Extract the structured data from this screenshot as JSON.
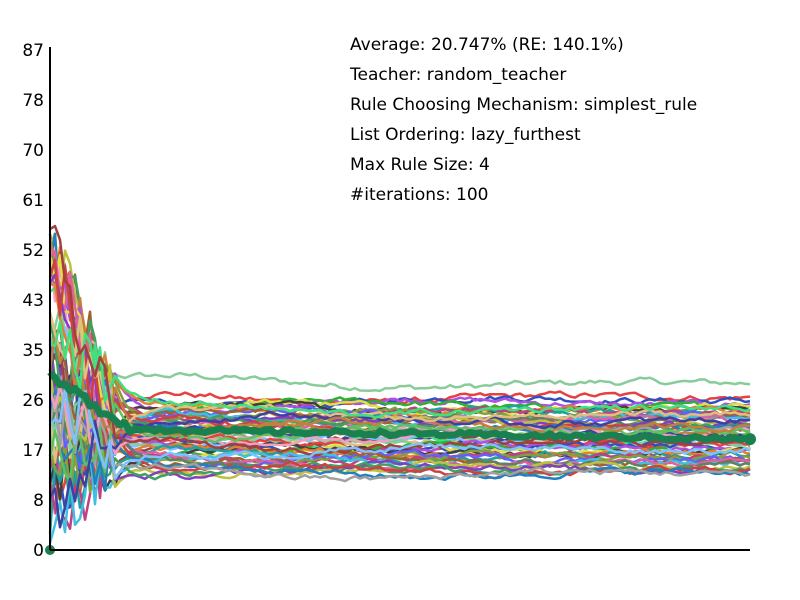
{
  "chart_data": {
    "type": "line",
    "title": "",
    "xlabel": "",
    "ylabel": "",
    "ylim": [
      0,
      87
    ],
    "xlim": [
      0,
      100
    ],
    "y_ticks": [
      "0",
      "8",
      "17",
      "26",
      "35",
      "43",
      "52",
      "61",
      "70",
      "78",
      "87"
    ],
    "y_tick_values": [
      0,
      8.7,
      17.4,
      26.1,
      34.8,
      43.5,
      52.2,
      60.9,
      69.6,
      78.3,
      87
    ],
    "grid": false,
    "legend": "none",
    "info_lines": [
      "Average: 20.747% (RE: 140.1%)",
      "Teacher: random_teacher",
      "Rule Choosing Mechanism: simplest_rule",
      "List Ordering: lazy_furthest",
      "Max Rule Size: 4",
      "#iterations: 100"
    ],
    "series_count": 60,
    "series_final_values": [
      29,
      26.5,
      26,
      25.5,
      25,
      24.8,
      24.5,
      24.2,
      24,
      23.8,
      23.5,
      23.2,
      23,
      22.8,
      22.5,
      22.2,
      22,
      21.8,
      21.5,
      21.2,
      21,
      20.8,
      20.5,
      20.2,
      20,
      19.8,
      19.5,
      19.2,
      19,
      18.8,
      18.5,
      18.2,
      18,
      17.8,
      17.5,
      17.2,
      17,
      16.8,
      16.5,
      16.2,
      16,
      15.8,
      15.5,
      15.2,
      15,
      14.8,
      14.5,
      14.2,
      14,
      13.8,
      13.5,
      13.3,
      19.5,
      20.5,
      21.5,
      22.5,
      23.5,
      24.5,
      18.5,
      17.5
    ],
    "series_colors": [
      "#88cc99",
      "#e64040",
      "#3050c0",
      "#b050e0",
      "#30b030",
      "#e0e040",
      "#404040",
      "#e08030",
      "#20a0a0",
      "#c04080",
      "#80a040",
      "#6060ff",
      "#a06030",
      "#40c0e0",
      "#e060a0",
      "#608060",
      "#c0c040",
      "#8040c0",
      "#40a060",
      "#d04040",
      "#2080c0",
      "#a0a0a0",
      "#f0a0c0",
      "#60c060",
      "#c08040",
      "#4040a0",
      "#e0c080",
      "#40e080",
      "#a04040",
      "#80c0ff"
    ],
    "average_series": {
      "name": "Average",
      "color": "#1a8050",
      "final_value": 19.3
    }
  }
}
